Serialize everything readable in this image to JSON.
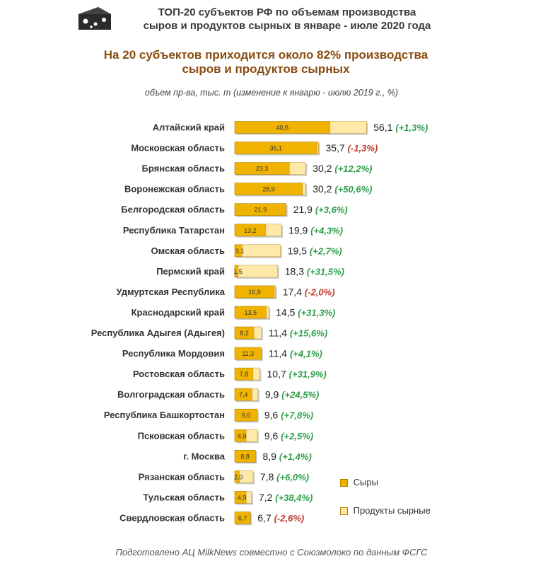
{
  "header": {
    "title_line1": "ТОП-20 субъектов РФ по объемам производства",
    "title_line2": "сыров и продуктов сырных в январе - июле 2020 года",
    "subtitle_line1": "На 20 субъектов приходится около 82% производства",
    "subtitle_line2": "сыров и продуктов сырных",
    "units": "объем пр-ва, тыс. т  (изменение к январю - июлю 2019 г., %)"
  },
  "icon": "cheese-icon",
  "colors": {
    "cheese": "#f0b400",
    "cheese_product": "#ffe9a8",
    "positive": "#2e9e4a",
    "negative": "#c0392b"
  },
  "chart_data": {
    "type": "bar",
    "stacked": true,
    "orientation": "horizontal",
    "categories": [
      "Алтайский край",
      "Московская область",
      "Брянская область",
      "Воронежская область",
      "Белгородская область",
      "Республика Татарстан",
      "Омская область",
      "Пермский край",
      "Удмуртская Республика",
      "Краснодарский край",
      "Республика Адыгея (Адыгея)",
      "Республика Мордовия",
      "Ростовская область",
      "Волгоградская область",
      "Республика Башкортостан",
      "Псковская область",
      "г. Москва",
      "Рязанская область",
      "Тульская область",
      "Свердловская область"
    ],
    "series": [
      {
        "name": "Сыры",
        "values": [
          40.6,
          35.1,
          23.3,
          28.9,
          21.9,
          13.2,
          3.1,
          1.5,
          16.9,
          13.5,
          8.2,
          11.3,
          7.8,
          7.4,
          9.6,
          4.9,
          8.8,
          2.0,
          4.9,
          6.7
        ],
        "labels": [
          "40,6",
          "35,1",
          "23,3",
          "28,9",
          "21,9",
          "13,2",
          "3,1",
          "1,5",
          "16,9",
          "13,5",
          "8,2",
          "11,3",
          "7,8",
          "7,4",
          "9,6",
          "4,9",
          "8,8",
          "2,0",
          "4,9",
          "6,7"
        ]
      },
      {
        "name": "Продукты сырные",
        "values": [
          15.5,
          0.6,
          6.9,
          1.3,
          0.0,
          6.7,
          16.4,
          16.8,
          0.5,
          1.0,
          3.2,
          0.1,
          2.9,
          2.5,
          0.0,
          4.7,
          0.1,
          5.8,
          2.3,
          0.0
        ]
      }
    ],
    "totals": [
      "56,1",
      "35,7",
      "30,2",
      "30,2",
      "21,9",
      "19,9",
      "19,5",
      "18,3",
      "17,4",
      "14,5",
      "11,4",
      "11,4",
      "10,7",
      "9,9",
      "9,6",
      "9,6",
      "8,9",
      "7,8",
      "7,2",
      "6,7"
    ],
    "changes": [
      "(+1,3%)",
      "(-1,3%)",
      "(+12,2%)",
      "(+50,6%)",
      "(+3,6%)",
      "(+4,3%)",
      "(+2,7%)",
      "(+31,5%)",
      "(-2,0%)",
      "(+31,3%)",
      "(+15,6%)",
      "(+4,1%)",
      "(+31,9%)",
      "(+24,5%)",
      "(+7,8%)",
      "(+2,5%)",
      "(+1,4%)",
      "(+6,0%)",
      "(+38,4%)",
      "(-2,6%)"
    ],
    "xlim": [
      0,
      60
    ],
    "legend_position": "right",
    "grid": false
  },
  "footer": "Подготовлено АЦ MilkNews совместно с Союзмолоко по данным ФСГС"
}
